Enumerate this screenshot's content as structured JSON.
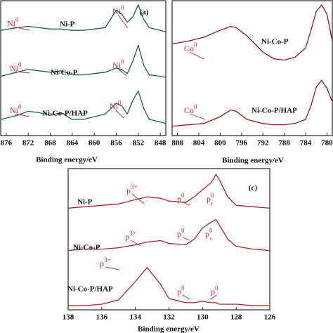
{
  "chart_data": [
    {
      "type": "line",
      "panel_label": "(a)",
      "xlabel": "Binding energy/eV",
      "xlim": [
        877,
        847
      ],
      "xticks": [
        876,
        872,
        868,
        864,
        860,
        856,
        852,
        848
      ],
      "ylim": [
        0,
        100
      ],
      "x": [
        877,
        874,
        872,
        870,
        868,
        866,
        864,
        862,
        860,
        858,
        856,
        855,
        854,
        853,
        852,
        851,
        850,
        848,
        847
      ],
      "series": [
        {
          "name": "Ni-P",
          "color": "#1f5a5a",
          "values": [
            78,
            80,
            81,
            80,
            79,
            79,
            78,
            78,
            79,
            80,
            93,
            90,
            84,
            88,
            97,
            86,
            80,
            78,
            77
          ]
        },
        {
          "name": "Ni-Co-P",
          "color": "#1f5a5a",
          "values": [
            44,
            47,
            49,
            48,
            47,
            48,
            45,
            45,
            46,
            47,
            50,
            49,
            46,
            55,
            67,
            52,
            45,
            44,
            43
          ]
        },
        {
          "name": "Ni-Co-P/HAP",
          "color": "#1f5a5a",
          "values": [
            12,
            15,
            18,
            17,
            15,
            17,
            12,
            12,
            14,
            16,
            24,
            22,
            16,
            26,
            33,
            20,
            12,
            10,
            9
          ]
        }
      ],
      "annotations": [
        {
          "text": "Ni",
          "sup": "0"
        },
        {
          "text": "Ni",
          "sup": "0"
        },
        {
          "text": "Ni",
          "sup": "0"
        },
        {
          "text": "Ni",
          "sup": "0"
        },
        {
          "text": "Ni",
          "sup": "0"
        },
        {
          "text": "Ni",
          "sup": "0"
        }
      ]
    },
    {
      "type": "line",
      "xlabel": "Binding energy/eV",
      "xlim": [
        809,
        779
      ],
      "xticks": [
        808,
        804,
        800,
        796,
        792,
        788,
        784,
        780
      ],
      "ylim": [
        0,
        100
      ],
      "x": [
        809,
        806,
        803,
        800,
        798,
        797,
        795,
        792,
        790,
        788,
        786,
        784,
        783,
        782,
        781,
        780,
        779
      ],
      "series": [
        {
          "name": "Ni-Co-P",
          "color": "#8b1a1a",
          "values": [
            68,
            70,
            73,
            78,
            81,
            80,
            74,
            62,
            57,
            56,
            58,
            65,
            78,
            92,
            97,
            90,
            70
          ]
        },
        {
          "name": "Ni-Co-P/HAP",
          "color": "#8b1a1a",
          "values": [
            7,
            8,
            9,
            14,
            19,
            18,
            12,
            9,
            8,
            8,
            9,
            12,
            22,
            36,
            41,
            35,
            25
          ]
        }
      ],
      "annotations": [
        {
          "text": "Co",
          "sup": "0"
        },
        {
          "text": "Co",
          "sup": "0"
        }
      ]
    },
    {
      "type": "line",
      "panel_label": "(c)",
      "xlabel": "Binding energy/eV",
      "xlim": [
        138,
        126
      ],
      "xticks": [
        138,
        136,
        134,
        132,
        130,
        128,
        126
      ],
      "ylim": [
        0,
        100
      ],
      "x": [
        138,
        137,
        136,
        135,
        134,
        133.3,
        132.5,
        132,
        131,
        130.5,
        130,
        129.5,
        129.2,
        129,
        128.5,
        128,
        127,
        126
      ],
      "series": [
        {
          "name": "Ni-P",
          "color": "#a02828",
          "values": [
            72,
            73,
            74,
            75,
            78,
            80,
            79,
            77,
            76,
            80,
            85,
            90,
            96,
            92,
            80,
            74,
            73,
            72
          ]
        },
        {
          "name": "Ni-Co-P",
          "color": "#a02828",
          "values": [
            42,
            43,
            43,
            44,
            46,
            48,
            49,
            47,
            46,
            50,
            58,
            62,
            64,
            60,
            50,
            45,
            43,
            42
          ]
        },
        {
          "name": "Ni-Co-P/HAP",
          "color": "#a02828",
          "values": [
            3,
            3,
            4,
            7,
            20,
            30,
            18,
            8,
            5,
            5,
            6,
            5,
            5,
            4,
            4,
            4,
            3,
            3
          ]
        }
      ],
      "annotations": [
        {
          "text": "p",
          "sup": "3+"
        },
        {
          "text": "p",
          "sup": "0"
        },
        {
          "text": "p",
          "sup": "0"
        },
        {
          "text": "p",
          "sup": "3+"
        },
        {
          "text": "p",
          "sup": "0"
        },
        {
          "text": "p",
          "sup": "0"
        },
        {
          "text": "p",
          "sup": "3+"
        },
        {
          "text": "p",
          "sup": "0"
        },
        {
          "text": "p",
          "sup": "0"
        }
      ]
    }
  ]
}
